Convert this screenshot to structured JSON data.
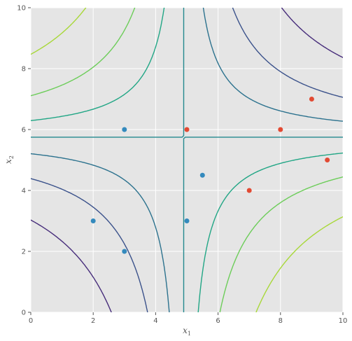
{
  "chart_data": {
    "type": "scatter",
    "title": "",
    "xlabel": {
      "base": "x",
      "sub": "1"
    },
    "ylabel": {
      "base": "x",
      "sub": "2"
    },
    "xlim": [
      0,
      10
    ],
    "ylim": [
      0,
      10
    ],
    "xticks": [
      0,
      2,
      4,
      6,
      8,
      10
    ],
    "yticks": [
      0,
      2,
      4,
      6,
      8,
      10
    ],
    "xtick_labels": [
      "0",
      "2",
      "4",
      "6",
      "8",
      "10"
    ],
    "ytick_labels": [
      "0",
      "2",
      "4",
      "6",
      "8",
      "10"
    ],
    "grid": true,
    "background": "#e5e5e5",
    "series": [
      {
        "color": "#348abd",
        "points": [
          [
            3,
            6
          ],
          [
            2,
            3
          ],
          [
            3,
            2
          ],
          [
            5,
            3
          ],
          [
            5.5,
            4.5
          ]
        ]
      },
      {
        "color": "#e24a33",
        "points": [
          [
            5,
            6
          ],
          [
            8,
            6
          ],
          [
            9,
            7
          ],
          [
            9.5,
            5
          ],
          [
            7,
            4
          ]
        ]
      }
    ],
    "contours": {
      "saddle": [
        4.9,
        5.75
      ],
      "grid_step": 0.05,
      "levels": [
        {
          "value": -40,
          "color": "#a8d839"
        },
        {
          "value": -20,
          "color": "#6ccd59"
        },
        {
          "value": -8,
          "color": "#21a685"
        },
        {
          "value": 0,
          "color": "#23898e"
        },
        {
          "value": 8,
          "color": "#2c728e"
        },
        {
          "value": 20,
          "color": "#3b528b"
        },
        {
          "value": 40,
          "color": "#472d7b"
        }
      ]
    }
  }
}
